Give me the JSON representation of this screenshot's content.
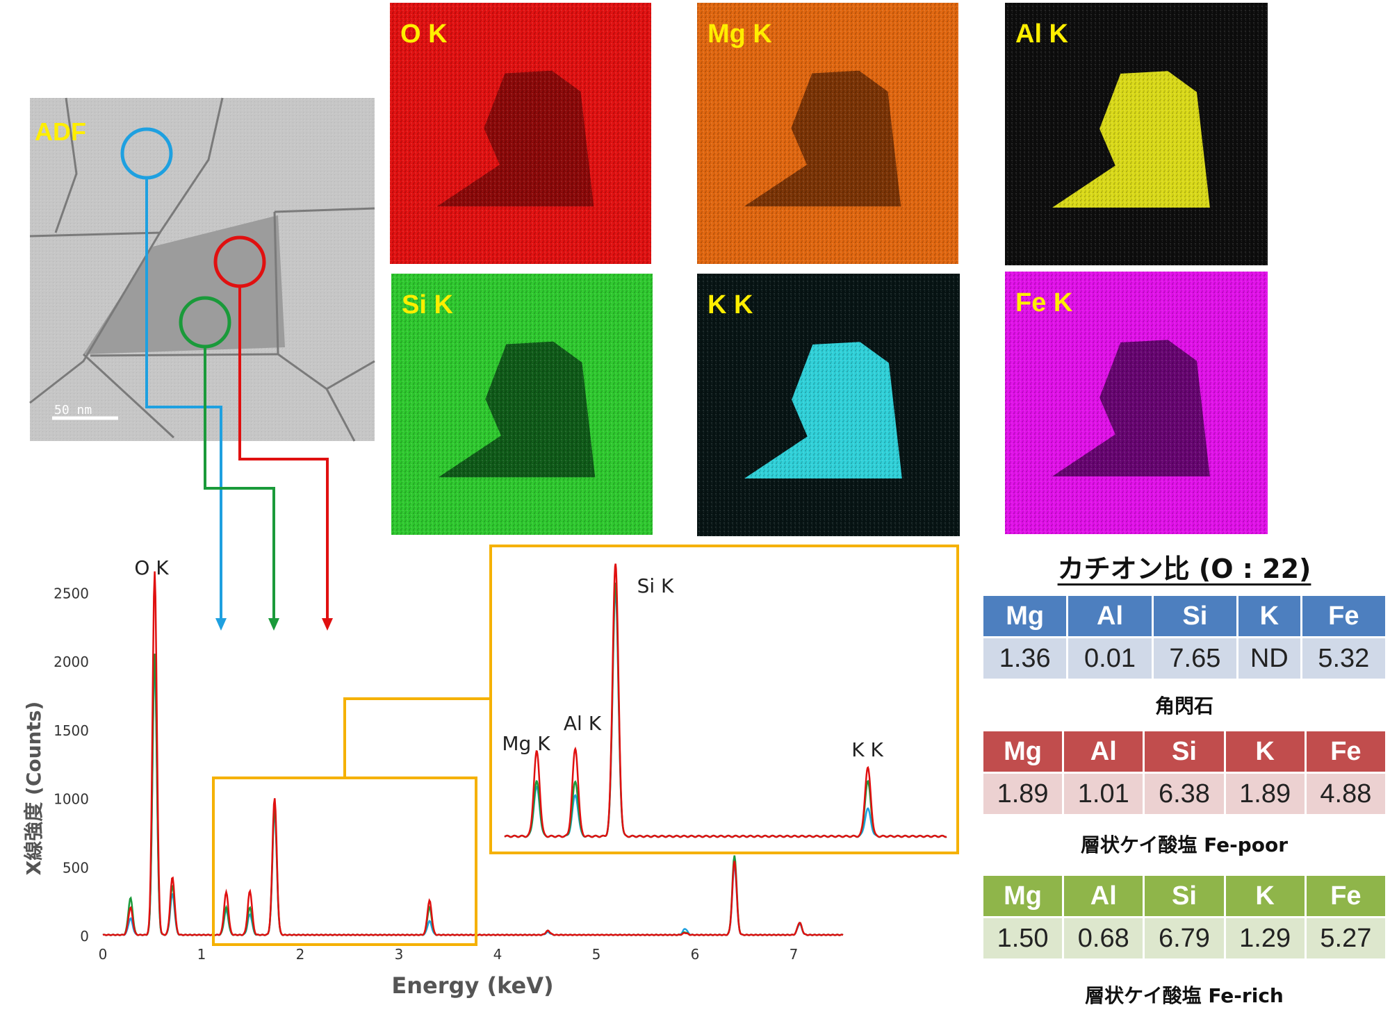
{
  "adf": {
    "label": "ADF",
    "scalebar": "50 nm"
  },
  "maps": [
    {
      "label": "O K",
      "bg": "#e01010",
      "dark": "#8a0808"
    },
    {
      "label": "Mg K",
      "bg": "#e0660f",
      "dark": "#7a3305"
    },
    {
      "label": "Al K",
      "bg": "#0d0d0d",
      "dark": "#d9d918"
    },
    {
      "label": "Si K",
      "bg": "#2ec82e",
      "dark": "#0f5a18"
    },
    {
      "label": "K K",
      "bg": "#071414",
      "dark": "#2fd0d8"
    },
    {
      "label": "Fe K",
      "bg": "#e010e8",
      "dark": "#660470"
    }
  ],
  "colors": {
    "blue": "#1ea0e0",
    "green": "#1a9a3a",
    "red": "#e01010",
    "orange": "#f5b100",
    "map_label": "#ffee00"
  },
  "chart_data": {
    "type": "line",
    "xlabel": "Energy (keV)",
    "ylabel": "X線強度 (Counts)",
    "xlim": [
      0,
      7.5
    ],
    "ylim": [
      0,
      2700
    ],
    "xticks": [
      "0",
      "1",
      "2",
      "3",
      "4",
      "5",
      "6",
      "7"
    ],
    "yticks": [
      "0",
      "500",
      "1000",
      "1500",
      "2000",
      "2500"
    ],
    "annotations": [
      "O K"
    ],
    "series": [
      {
        "name": "blue",
        "color": "#1ea0e0",
        "peaks": [
          [
            0.28,
            120
          ],
          [
            0.525,
            2000
          ],
          [
            0.705,
            300
          ],
          [
            1.25,
            180
          ],
          [
            1.49,
            150
          ],
          [
            1.74,
            900
          ],
          [
            3.31,
            100
          ],
          [
            4.51,
            20
          ],
          [
            5.9,
            45
          ],
          [
            6.4,
            510
          ],
          [
            7.06,
            80
          ]
        ]
      },
      {
        "name": "green",
        "color": "#1a9a3a",
        "peaks": [
          [
            0.28,
            270
          ],
          [
            0.525,
            2050
          ],
          [
            0.705,
            360
          ],
          [
            1.25,
            200
          ],
          [
            1.49,
            200
          ],
          [
            1.74,
            930
          ],
          [
            3.31,
            200
          ],
          [
            4.51,
            30
          ],
          [
            5.9,
            20
          ],
          [
            6.4,
            580
          ],
          [
            7.06,
            90
          ]
        ]
      },
      {
        "name": "red",
        "color": "#e01010",
        "peaks": [
          [
            0.28,
            200
          ],
          [
            0.525,
            2650
          ],
          [
            0.705,
            420
          ],
          [
            1.25,
            310
          ],
          [
            1.49,
            320
          ],
          [
            1.74,
            1000
          ],
          [
            3.31,
            250
          ],
          [
            4.51,
            30
          ],
          [
            5.9,
            15
          ],
          [
            6.4,
            540
          ],
          [
            7.06,
            90
          ]
        ]
      }
    ],
    "inset": {
      "xlim": [
        1.05,
        3.8
      ],
      "labels": [
        "Mg K",
        "Al K",
        "Si K",
        "K K"
      ]
    }
  },
  "cation": {
    "title": "カチオン比 (O : 22)",
    "headers": [
      "Mg",
      "Al",
      "Si",
      "K",
      "Fe"
    ],
    "tables": [
      {
        "values": [
          "1.36",
          "0.01",
          "7.65",
          "ND",
          "5.32"
        ],
        "caption": "角閃石",
        "head": "#4d7fbf",
        "body": "#d0d9e8"
      },
      {
        "values": [
          "1.89",
          "1.01",
          "6.38",
          "1.89",
          "4.88"
        ],
        "caption": "層状ケイ酸塩 Fe-poor",
        "head": "#c14d4d",
        "body": "#ecd1d1"
      },
      {
        "values": [
          "1.50",
          "0.68",
          "6.79",
          "1.29",
          "5.27"
        ],
        "caption": "層状ケイ酸塩 Fe-rich",
        "head": "#8fb54a",
        "body": "#dde7cd"
      }
    ]
  }
}
